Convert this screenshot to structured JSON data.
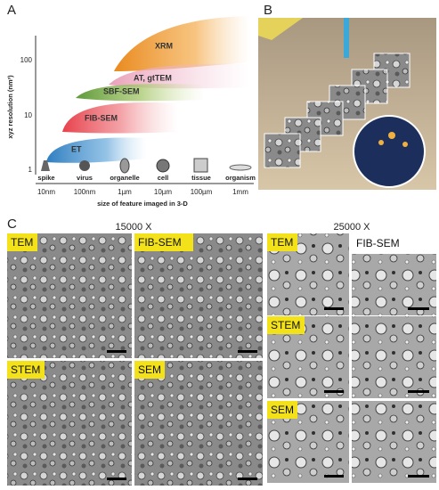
{
  "panel_a": {
    "label": "A",
    "y_axis_label": "xyz resolution (nm³)",
    "yticks": [
      "100",
      "10",
      "1"
    ],
    "x_axis_label": "size of feature imaged in 3-D",
    "xticks": [
      "10nm",
      "100nm",
      "1µm",
      "10µm",
      "100µm",
      "1mm"
    ],
    "features": [
      "spike",
      "virus",
      "organelle",
      "cell",
      "tissue",
      "organism"
    ],
    "regions": [
      "XRM",
      "AT, gtTEM",
      "SBF-SEM",
      "FIB-SEM",
      "ET"
    ]
  },
  "panel_b": {
    "label": "B"
  },
  "panel_c": {
    "label": "C",
    "left_magnification": "15000 X",
    "right_magnification": "25000 X",
    "left_images": [
      "TEM",
      "FIB-SEM",
      "STEM",
      "SEM"
    ],
    "right_images": [
      "TEM",
      "FIB-SEM",
      "STEM",
      "SEM"
    ]
  }
}
